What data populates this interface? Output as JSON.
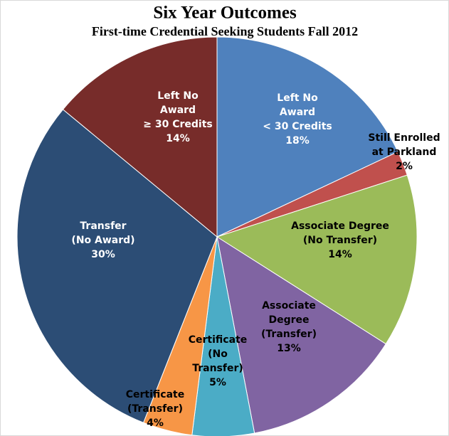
{
  "chart_data": {
    "type": "pie",
    "title": "Six Year Outcomes",
    "subtitle": "First-time Credential Seeking Students Fall 2012",
    "categories": [
      [
        "Left No",
        "Award",
        "< 30 Credits"
      ],
      [
        "Still Enrolled",
        "at Parkland"
      ],
      [
        "Associate Degree",
        "(No Transfer)"
      ],
      [
        "Associate",
        "Degree",
        "(Transfer)"
      ],
      [
        "Certificate",
        "(No",
        "Transfer)"
      ],
      [
        "Certificate",
        "(Transfer)"
      ],
      [
        "Transfer",
        "(No Award)"
      ],
      [
        "Left No",
        "Award",
        "≥ 30 Credits"
      ]
    ],
    "values": [
      18,
      2,
      14,
      13,
      5,
      4,
      30,
      14
    ],
    "value_labels": [
      "18%",
      "2%",
      "14%",
      "13%",
      "5%",
      "4%",
      "30%",
      "14%"
    ],
    "colors": [
      "#4f81bd",
      "#c0504d",
      "#9bbb59",
      "#8064a2",
      "#4bacc6",
      "#f79646",
      "#2c4d75",
      "#772c2a"
    ]
  }
}
